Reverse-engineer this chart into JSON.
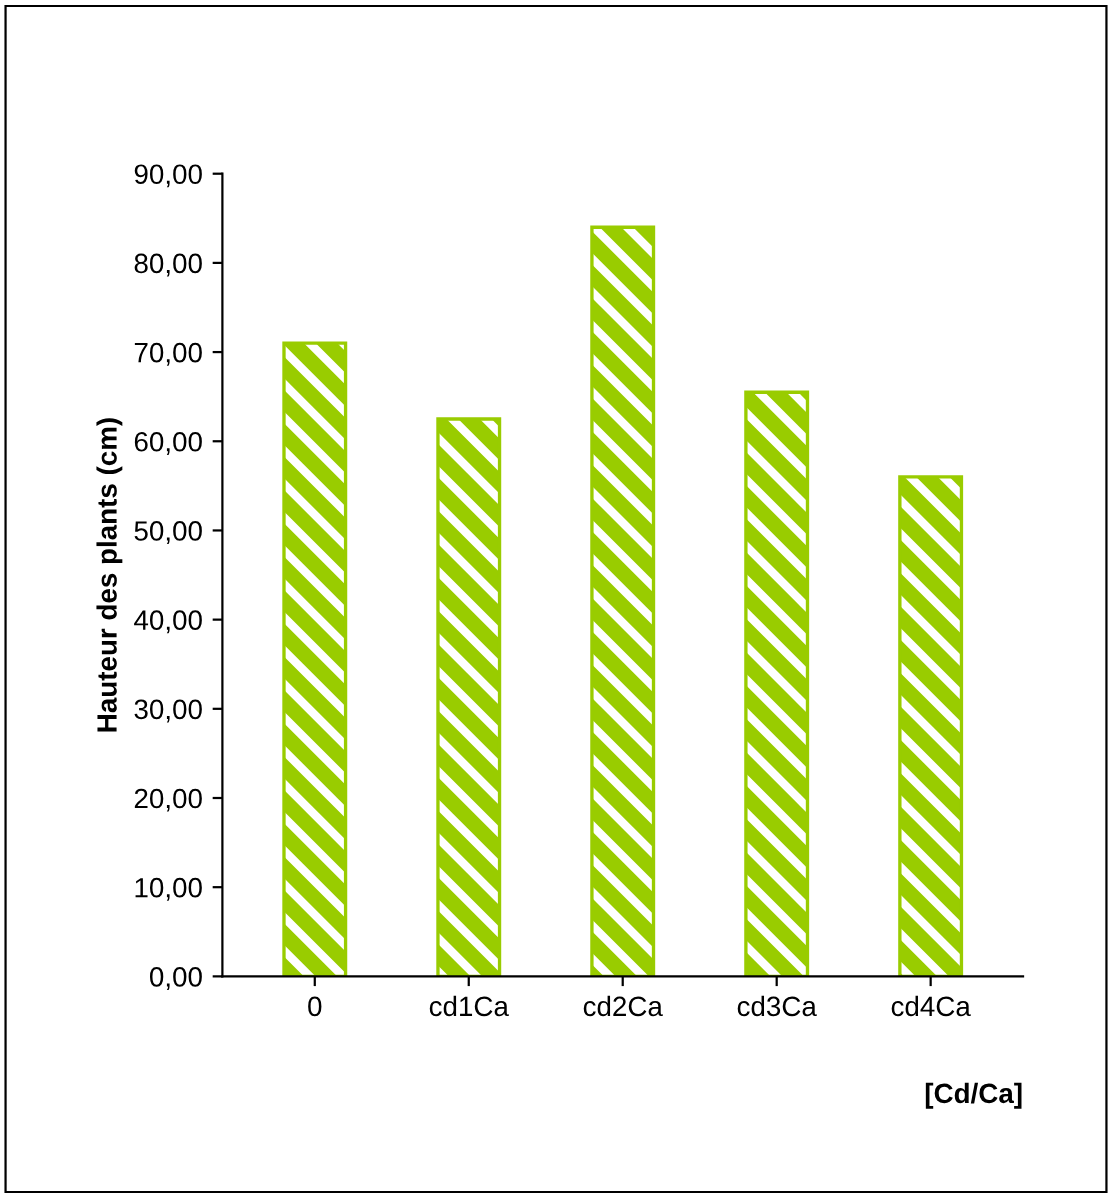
{
  "chart_data": {
    "type": "bar",
    "xlabel": "[Cd/Ca]",
    "ylabel": "Hauteur des plants (cm)",
    "categories": [
      "0",
      "cd1Ca",
      "cd2Ca",
      "cd3Ca",
      "cd4Ca"
    ],
    "values": [
      71,
      62.5,
      84,
      65.5,
      56
    ],
    "color": "#99cc00",
    "ylim": [
      0,
      90
    ],
    "yticks": [
      {
        "value": 0,
        "label": "0,00"
      },
      {
        "value": 10,
        "label": "10,00"
      },
      {
        "value": 20,
        "label": "20,00"
      },
      {
        "value": 30,
        "label": "30,00"
      },
      {
        "value": 40,
        "label": "40,00"
      },
      {
        "value": 50,
        "label": "50,00"
      },
      {
        "value": 60,
        "label": "60,00"
      },
      {
        "value": 70,
        "label": "70,00"
      },
      {
        "value": 80,
        "label": "80,00"
      },
      {
        "value": 90,
        "label": "90,00"
      }
    ],
    "grid": false,
    "legend": false
  }
}
